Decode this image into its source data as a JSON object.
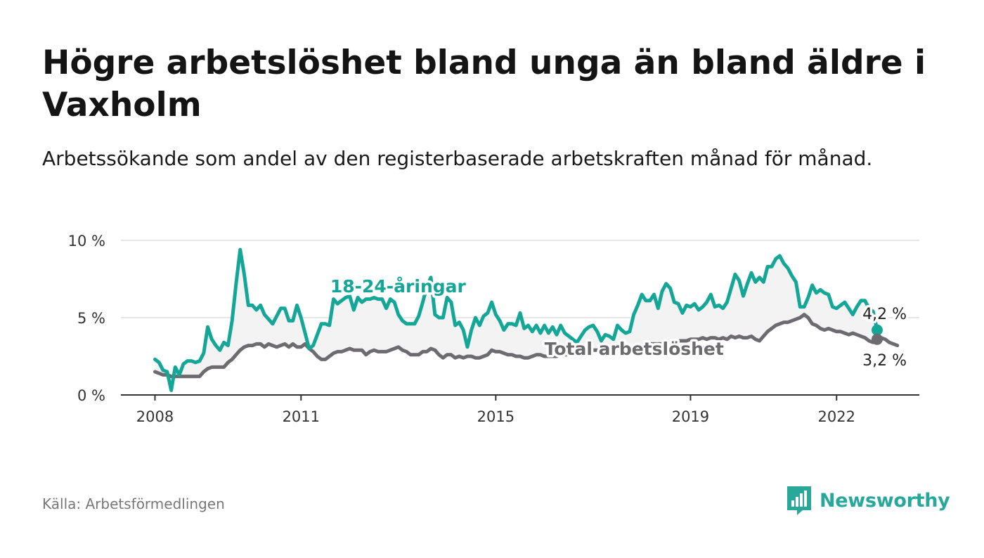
{
  "title": "Högre arbetslöshet bland unga än bland äldre i Vaxholm",
  "subtitle": "Arbetssökande som andel av den registerbaserade arbetskraften månad för månad.",
  "source": "Källa: Arbetsförmedlingen",
  "brand": "Newsworthy",
  "colors": {
    "youth": "#14a697",
    "total": "#6d6b6f",
    "fill": "#f3f3f3",
    "grid": "#dedede",
    "axis": "#333333",
    "brand": "#27a89a"
  },
  "chart_data": {
    "type": "line",
    "title": "Högre arbetslöshet bland unga än bland äldre i Vaxholm",
    "xlabel": "",
    "ylabel": "",
    "x_start": 2008.0,
    "x_step_months": 1,
    "xlim": [
      2007.3,
      2023.7
    ],
    "ylim": [
      0,
      10
    ],
    "x_ticks": [
      2008,
      2011,
      2015,
      2019,
      2022
    ],
    "x_tick_labels": [
      "2008",
      "2011",
      "2015",
      "2019",
      "2022"
    ],
    "y_ticks": [
      0,
      5,
      10
    ],
    "y_tick_labels": [
      "0 %",
      "5 %",
      "10 %"
    ],
    "series": [
      {
        "name": "18-24-åringar",
        "label": "18-24-åringar",
        "end_label": "4,2 %",
        "values": [
          2.3,
          2.1,
          1.6,
          1.5,
          0.3,
          1.8,
          1.3,
          2.0,
          2.2,
          2.2,
          2.1,
          2.2,
          2.7,
          4.4,
          3.6,
          3.2,
          2.9,
          3.4,
          3.2,
          4.8,
          7.2,
          9.4,
          7.8,
          5.8,
          5.8,
          5.5,
          5.8,
          5.2,
          4.9,
          4.6,
          5.1,
          5.6,
          5.6,
          4.8,
          4.8,
          5.8,
          5.0,
          4.0,
          3.0,
          3.2,
          3.9,
          4.6,
          4.6,
          4.5,
          6.2,
          5.9,
          6.1,
          6.3,
          6.4,
          5.5,
          6.3,
          6.0,
          6.2,
          6.2,
          6.3,
          6.2,
          6.2,
          5.6,
          6.2,
          6.0,
          5.2,
          4.8,
          4.6,
          4.6,
          4.6,
          5.1,
          6.0,
          7.0,
          7.6,
          5.2,
          5.0,
          5.0,
          6.3,
          6.0,
          4.5,
          4.7,
          4.2,
          3.1,
          4.2,
          5.0,
          4.5,
          5.1,
          5.3,
          6.0,
          5.2,
          4.8,
          4.2,
          4.6,
          4.6,
          4.5,
          5.3,
          4.3,
          4.5,
          4.1,
          4.5,
          4.0,
          4.5,
          4.0,
          4.4,
          3.9,
          4.5,
          4.0,
          3.8,
          3.6,
          3.4,
          3.8,
          4.2,
          4.4,
          4.5,
          4.1,
          3.5,
          3.9,
          3.8,
          3.6,
          4.5,
          4.2,
          4.0,
          4.1,
          5.2,
          5.8,
          6.5,
          6.1,
          6.1,
          6.5,
          5.6,
          6.7,
          7.2,
          6.9,
          6.0,
          5.9,
          5.3,
          5.8,
          5.7,
          5.9,
          5.5,
          5.7,
          6.0,
          6.5,
          5.7,
          5.8,
          5.6,
          6.0,
          6.9,
          7.8,
          7.4,
          6.4,
          7.2,
          7.9,
          7.3,
          7.6,
          7.3,
          8.3,
          8.3,
          8.8,
          9.0,
          8.5,
          8.2,
          7.7,
          7.3,
          5.7,
          5.7,
          6.3,
          7.1,
          6.6,
          6.8,
          6.6,
          6.5,
          5.7,
          5.6,
          5.8,
          6.0,
          5.6,
          5.2,
          5.7,
          6.1,
          6.1,
          5.6,
          5.4,
          4.2
        ]
      },
      {
        "name": "Total arbetslöshet",
        "label": "Total arbetslöshet",
        "end_label": "3,2 %",
        "values": [
          1.5,
          1.4,
          1.3,
          1.3,
          1.2,
          1.2,
          1.2,
          1.2,
          1.2,
          1.2,
          1.2,
          1.2,
          1.5,
          1.7,
          1.8,
          1.8,
          1.8,
          1.8,
          2.1,
          2.3,
          2.6,
          2.9,
          3.1,
          3.2,
          3.2,
          3.3,
          3.3,
          3.1,
          3.3,
          3.2,
          3.1,
          3.2,
          3.3,
          3.1,
          3.3,
          3.1,
          3.1,
          3.3,
          3.0,
          2.8,
          2.5,
          2.3,
          2.3,
          2.5,
          2.7,
          2.8,
          2.8,
          2.9,
          3.0,
          2.9,
          2.9,
          2.9,
          2.6,
          2.8,
          2.9,
          2.8,
          2.8,
          2.8,
          2.9,
          3.0,
          3.1,
          2.9,
          2.8,
          2.6,
          2.6,
          2.6,
          2.8,
          2.8,
          3.0,
          2.9,
          2.6,
          2.4,
          2.6,
          2.6,
          2.4,
          2.5,
          2.4,
          2.5,
          2.5,
          2.4,
          2.4,
          2.5,
          2.6,
          2.9,
          2.8,
          2.8,
          2.7,
          2.6,
          2.6,
          2.5,
          2.5,
          2.4,
          2.4,
          2.5,
          2.6,
          2.6,
          2.5,
          2.5,
          2.5,
          2.5,
          2.6,
          2.6,
          2.6,
          2.6,
          2.6,
          2.7,
          2.8,
          2.8,
          2.9,
          2.9,
          2.9,
          3.0,
          3.0,
          3.0,
          3.0,
          3.1,
          3.1,
          3.0,
          3.1,
          3.2,
          3.2,
          3.2,
          3.3,
          3.3,
          3.3,
          3.3,
          3.4,
          3.4,
          3.4,
          3.5,
          3.5,
          3.5,
          3.6,
          3.6,
          3.6,
          3.7,
          3.6,
          3.7,
          3.7,
          3.6,
          3.7,
          3.6,
          3.8,
          3.7,
          3.8,
          3.7,
          3.7,
          3.8,
          3.6,
          3.5,
          3.8,
          4.1,
          4.3,
          4.5,
          4.6,
          4.7,
          4.7,
          4.8,
          4.9,
          5.0,
          5.2,
          5.0,
          4.6,
          4.5,
          4.3,
          4.2,
          4.3,
          4.2,
          4.1,
          4.1,
          4.0,
          3.9,
          4.0,
          3.9,
          3.8,
          3.7,
          3.5,
          3.4,
          3.6,
          3.7,
          3.6,
          3.4,
          3.3,
          3.2
        ]
      }
    ]
  }
}
